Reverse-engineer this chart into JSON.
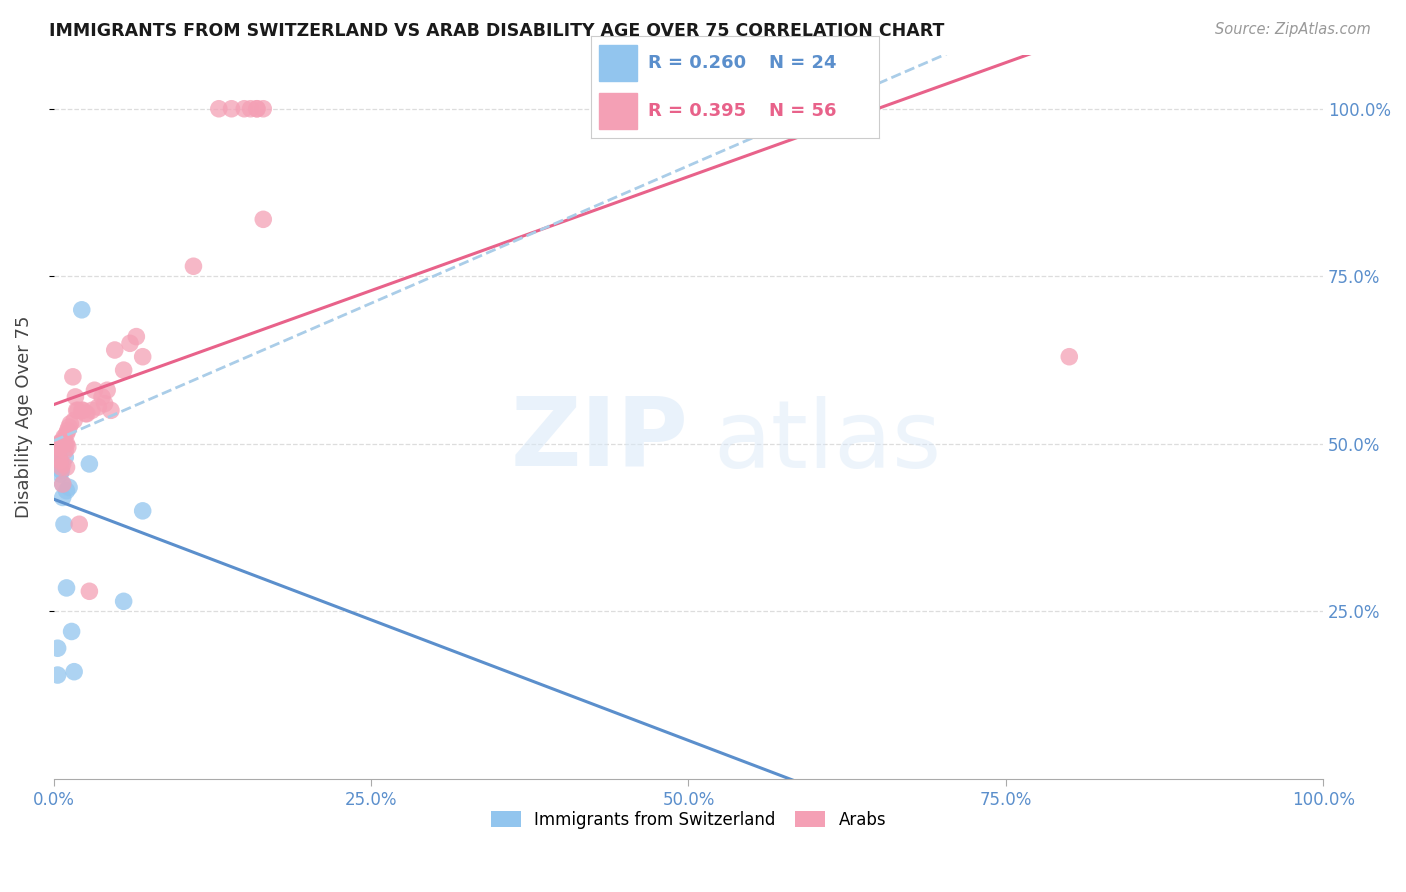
{
  "title": "IMMIGRANTS FROM SWITZERLAND VS ARAB DISABILITY AGE OVER 75 CORRELATION CHART",
  "source": "Source: ZipAtlas.com",
  "ylabel": "Disability Age Over 75",
  "swiss_color": "#92C5EE",
  "arab_color": "#F4A0B5",
  "swiss_line_color": "#5B8FCC",
  "arab_line_color": "#E8628A",
  "dashed_line_color": "#AACDE8",
  "legend_r_swiss": "R = 0.260",
  "legend_n_swiss": "N = 24",
  "legend_r_arab": "R = 0.395",
  "legend_n_arab": "N = 56",
  "swiss_x": [
    0.003,
    0.003,
    0.004,
    0.004,
    0.005,
    0.005,
    0.005,
    0.005,
    0.006,
    0.006,
    0.007,
    0.007,
    0.008,
    0.008,
    0.009,
    0.01,
    0.01,
    0.012,
    0.014,
    0.016,
    0.022,
    0.028,
    0.055,
    0.07
  ],
  "swiss_y": [
    0.195,
    0.155,
    0.475,
    0.49,
    0.5,
    0.495,
    0.475,
    0.455,
    0.5,
    0.46,
    0.44,
    0.42,
    0.5,
    0.38,
    0.48,
    0.43,
    0.285,
    0.435,
    0.22,
    0.16,
    0.7,
    0.47,
    0.265,
    0.4
  ],
  "arab_x": [
    0.003,
    0.003,
    0.004,
    0.004,
    0.005,
    0.005,
    0.005,
    0.006,
    0.006,
    0.007,
    0.007,
    0.007,
    0.008,
    0.008,
    0.009,
    0.009,
    0.01,
    0.01,
    0.01,
    0.011,
    0.011,
    0.012,
    0.013,
    0.015,
    0.016,
    0.017,
    0.018,
    0.019,
    0.02,
    0.022,
    0.023,
    0.025,
    0.026,
    0.028,
    0.03,
    0.032,
    0.035,
    0.038,
    0.04,
    0.042,
    0.045,
    0.048,
    0.055,
    0.06,
    0.065,
    0.07,
    0.11,
    0.13,
    0.14,
    0.15,
    0.155,
    0.16,
    0.16,
    0.165,
    0.165,
    0.8
  ],
  "arab_y": [
    0.5,
    0.495,
    0.495,
    0.48,
    0.5,
    0.495,
    0.475,
    0.5,
    0.465,
    0.505,
    0.47,
    0.44,
    0.5,
    0.51,
    0.5,
    0.49,
    0.515,
    0.5,
    0.465,
    0.52,
    0.495,
    0.525,
    0.53,
    0.6,
    0.535,
    0.57,
    0.55,
    0.55,
    0.38,
    0.55,
    0.55,
    0.545,
    0.545,
    0.28,
    0.55,
    0.58,
    0.555,
    0.57,
    0.56,
    0.58,
    0.55,
    0.64,
    0.61,
    0.65,
    0.66,
    0.63,
    0.765,
    1.0,
    1.0,
    1.0,
    1.0,
    1.0,
    1.0,
    1.0,
    0.835,
    0.63
  ],
  "xlim": [
    0.0,
    1.0
  ],
  "ylim": [
    0.0,
    1.08
  ],
  "x_ticks": [
    0.0,
    0.25,
    0.5,
    0.75,
    1.0
  ],
  "y_ticks": [
    0.25,
    0.5,
    0.75,
    1.0
  ]
}
